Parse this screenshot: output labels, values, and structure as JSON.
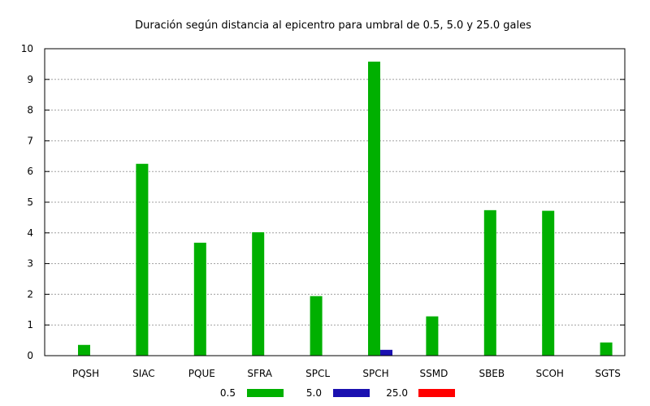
{
  "chart_data": {
    "type": "bar",
    "title": "Duración según distancia al epicentro para umbral de 0.5, 5.0 y 25.0 gales",
    "xlabel": "",
    "ylabel": "",
    "ylim": [
      0,
      10
    ],
    "yticks": [
      "0",
      "1",
      "2",
      "3",
      "4",
      "5",
      "6",
      "7",
      "8",
      "9",
      "10"
    ],
    "grid": true,
    "legend_position": "bottom",
    "categories": [
      "PQSH",
      "SIAC",
      "PQUE",
      "SFRA",
      "SPCL",
      "SPCH",
      "SSMD",
      "SBEB",
      "SCOH",
      "SGTS"
    ],
    "series": [
      {
        "name": "0.5",
        "color": "#00b000",
        "values": [
          0.35,
          6.25,
          3.68,
          4.02,
          1.94,
          9.58,
          1.28,
          4.74,
          4.72,
          0.43
        ]
      },
      {
        "name": "5.0",
        "color": "#1a10b0",
        "values": [
          0,
          0,
          0,
          0,
          0,
          0.19,
          0,
          0,
          0,
          0
        ]
      },
      {
        "name": "25.0",
        "color": "#ff0000",
        "values": [
          0,
          0,
          0,
          0,
          0,
          0,
          0,
          0,
          0,
          0
        ]
      }
    ]
  }
}
